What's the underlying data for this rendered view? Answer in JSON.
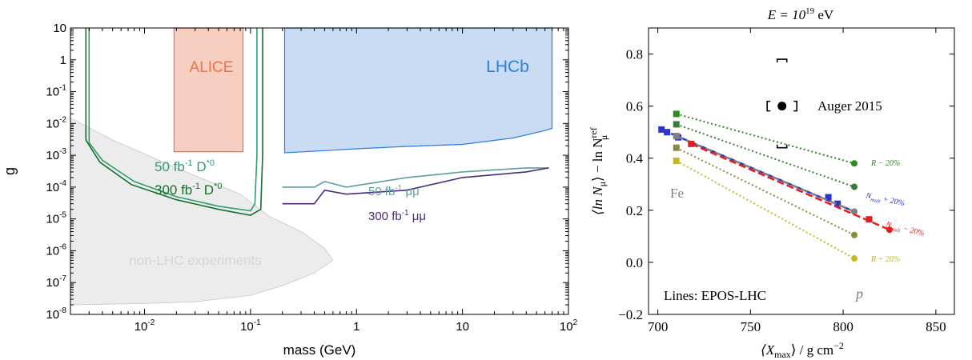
{
  "chart_data": [
    {
      "type": "area",
      "title": "",
      "xlabel": "mass (GeV)",
      "ylabel": "g",
      "xscale": "log",
      "yscale": "log",
      "xlim": [
        0.002,
        100
      ],
      "ylim": [
        1e-08,
        10
      ],
      "xticks": [
        {
          "value": 0.01,
          "label": "10",
          "exp": "-2"
        },
        {
          "value": 0.1,
          "label": "10",
          "exp": "-1"
        },
        {
          "value": 1,
          "label": "1",
          "exp": ""
        },
        {
          "value": 10,
          "label": "10",
          "exp": ""
        },
        {
          "value": 100,
          "label": "10",
          "exp": "2"
        }
      ],
      "yticks": [
        {
          "value": 10,
          "label": "10",
          "exp": ""
        },
        {
          "value": 1,
          "label": "1",
          "exp": ""
        },
        {
          "value": 0.1,
          "label": "10",
          "exp": "-1"
        },
        {
          "value": 0.01,
          "label": "10",
          "exp": "-2"
        },
        {
          "value": 0.001,
          "label": "10",
          "exp": "-3"
        },
        {
          "value": 0.0001,
          "label": "10",
          "exp": "-4"
        },
        {
          "value": 1e-05,
          "label": "10",
          "exp": "-5"
        },
        {
          "value": 1e-06,
          "label": "10",
          "exp": "-6"
        },
        {
          "value": 1e-07,
          "label": "10",
          "exp": "-7"
        },
        {
          "value": 1e-08,
          "label": "10",
          "exp": "-8"
        }
      ],
      "regions": [
        {
          "name": "ALICE",
          "color": "#f0704a",
          "fill": "#f6cfc0",
          "points": [
            [
              0.019,
              10
            ],
            [
              0.019,
              0.0013
            ],
            [
              0.085,
              0.0013
            ],
            [
              0.085,
              10
            ]
          ]
        },
        {
          "name": "LHCb",
          "color": "#2a7de1",
          "fill": "#c9dcf4",
          "points": [
            [
              0.21,
              10
            ],
            [
              0.21,
              0.0012
            ],
            [
              0.5,
              0.0014
            ],
            [
              1,
              0.0016
            ],
            [
              3,
              0.0019
            ],
            [
              10,
              0.0022
            ],
            [
              30,
              0.0035
            ],
            [
              60,
              0.006
            ],
            [
              70,
              0.007
            ],
            [
              70,
              10
            ]
          ]
        },
        {
          "name": "non-LHC experiments",
          "color": "#c8c8c8",
          "fill": "#ececec",
          "points": [
            [
              0.002,
              0.015
            ],
            [
              0.005,
              0.003
            ],
            [
              0.02,
              0.0004
            ],
            [
              0.08,
              6e-05
            ],
            [
              0.15,
              1.2e-05
            ],
            [
              0.3,
              4e-06
            ],
            [
              0.5,
              1.2e-06
            ],
            [
              0.6,
              5e-07
            ],
            [
              0.4,
              2e-07
            ],
            [
              0.2,
              8e-08
            ],
            [
              0.1,
              4e-08
            ],
            [
              0.03,
              2.5e-08
            ],
            [
              0.01,
              2.2e-08
            ],
            [
              0.002,
              2e-08
            ]
          ]
        }
      ],
      "series": [
        {
          "name": "50 fb-1 D*0",
          "color": "#2e9e6e",
          "points": [
            [
              0.003,
              10
            ],
            [
              0.003,
              0.0025
            ],
            [
              0.004,
              0.0007
            ],
            [
              0.008,
              0.00015
            ],
            [
              0.02,
              5e-05
            ],
            [
              0.05,
              2.5e-05
            ],
            [
              0.1,
              1.8e-05
            ],
            [
              0.11,
              3e-05
            ],
            [
              0.115,
              0.001
            ],
            [
              0.115,
              10
            ]
          ]
        },
        {
          "name": "300 fb-1 D*0",
          "color": "#1b6e2e",
          "points": [
            [
              0.0028,
              10
            ],
            [
              0.0028,
              0.003
            ],
            [
              0.0038,
              0.0006
            ],
            [
              0.0075,
              0.00012
            ],
            [
              0.02,
              4e-05
            ],
            [
              0.05,
              2e-05
            ],
            [
              0.1,
              1.3e-05
            ],
            [
              0.125,
              2e-05
            ],
            [
              0.13,
              0.001
            ],
            [
              0.13,
              10
            ]
          ]
        },
        {
          "name": "50 fb-1 μμ",
          "color": "#5f9ea0",
          "points": [
            [
              0.2,
              0.0001
            ],
            [
              0.4,
              0.0001
            ],
            [
              0.5,
              0.00015
            ],
            [
              0.8,
              0.0001
            ],
            [
              3,
              0.0002
            ],
            [
              10,
              0.0003
            ],
            [
              40,
              0.0004
            ],
            [
              65,
              0.0004
            ]
          ]
        },
        {
          "name": "300 fb-1 μμ",
          "color": "#4a2a7a",
          "points": [
            [
              0.2,
              3e-05
            ],
            [
              0.4,
              3e-05
            ],
            [
              0.5,
              8e-05
            ],
            [
              0.8,
              6e-05
            ],
            [
              3,
              8e-05
            ],
            [
              10,
              0.0002
            ],
            [
              40,
              0.0003
            ],
            [
              65,
              0.0004
            ]
          ]
        }
      ],
      "labels": {
        "alice": "ALICE",
        "lhcb": "LHCb",
        "nonlhc": "non-LHC experiments",
        "d50_main": "50 fb",
        "d50_exp": "-1",
        "d50_tail": " D",
        "d50_sup": "*0",
        "d300_main": "300 fb",
        "d300_exp": "-1",
        "d300_tail": " D",
        "d300_sup": "*0",
        "mm50_main": "50 fb",
        "mm50_exp": "-1",
        "mm50_tail": " μμ",
        "mm300_main": "300 fb",
        "mm300_exp": "-1",
        "mm300_tail": " μμ"
      }
    },
    {
      "type": "scatter",
      "title": "E = 10^19 eV",
      "xlabel": "⟨Xmax⟩ / g cm^-2",
      "ylabel": "⟨ln Nμ⟩ − ln Nμ^ref",
      "xlim": [
        695,
        860
      ],
      "ylim": [
        -0.2,
        0.9
      ],
      "xticks": [
        700,
        750,
        800,
        850
      ],
      "yticks": [
        -0.2,
        0.0,
        0.2,
        0.4,
        0.6,
        0.8
      ],
      "ytick_labels": [
        "−0.2",
        "0.0",
        "0.2",
        "0.4",
        "0.6",
        "0.8"
      ],
      "auger": {
        "name": "Auger 2015",
        "x": 767,
        "y": 0.6,
        "xerr": [
          759,
          775
        ],
        "yerr_sys": [
          0.44,
          0.78
        ]
      },
      "series": [
        {
          "name": "R − 20%",
          "color": "#2e8b22",
          "style": "dotted",
          "points": [
            [
              710,
              0.57
            ],
            [
              806,
              0.38
            ]
          ]
        },
        {
          "name": "",
          "color": "#3a7a3a",
          "style": "dotted",
          "points": [
            [
              710,
              0.53
            ],
            [
              806,
              0.29
            ]
          ]
        },
        {
          "name": "Nmult + 20%",
          "color": "#2a35d0",
          "style": "dashed",
          "points": [
            [
              702,
              0.51
            ],
            [
              705,
              0.5
            ],
            [
              711,
              0.48
            ],
            [
              792,
              0.25
            ],
            [
              797,
              0.225
            ],
            [
              806,
              0.195
            ]
          ]
        },
        {
          "name": "",
          "color": "#808080",
          "style": "dashed",
          "points": [
            [
              710,
              0.485
            ],
            [
              806,
              0.195
            ]
          ]
        },
        {
          "name": "Nmult − 20%",
          "color": "#e0201f",
          "style": "dashed",
          "points": [
            [
              718,
              0.455
            ],
            [
              814,
              0.165
            ],
            [
              825,
              0.125
            ]
          ]
        },
        {
          "name": "",
          "color": "#8a8a3a",
          "style": "dotted",
          "points": [
            [
              710,
              0.44
            ],
            [
              806,
              0.105
            ]
          ]
        },
        {
          "name": "R + 20%",
          "color": "#c8b820",
          "style": "dotted",
          "points": [
            [
              710,
              0.39
            ],
            [
              806,
              0.015
            ]
          ]
        }
      ],
      "labels": {
        "title": "E = 10",
        "title_exp": "19",
        "title_tail": " eV",
        "fe": "Fe",
        "p": "p",
        "lines": "Lines: EPOS-LHC",
        "auger": "Auger 2015",
        "r_minus": "R − 20%",
        "r_plus": "R + 20%",
        "n_plus": "N",
        "n_plus_sub": "mult",
        "n_plus_tail": " + 20%",
        "n_minus": "N",
        "n_minus_sub": "mult",
        "n_minus_tail": " − 20%",
        "xlabel_a": "⟨X",
        "xlabel_sub": "max",
        "xlabel_b": "⟩ / g cm",
        "xlabel_exp": "−2",
        "ylabel_a": "⟨ln N",
        "ylabel_sub": "μ",
        "ylabel_b": "⟩ − ln N",
        "ylabel_sup": "ref",
        "ylabel_sub2": "μ"
      }
    }
  ]
}
